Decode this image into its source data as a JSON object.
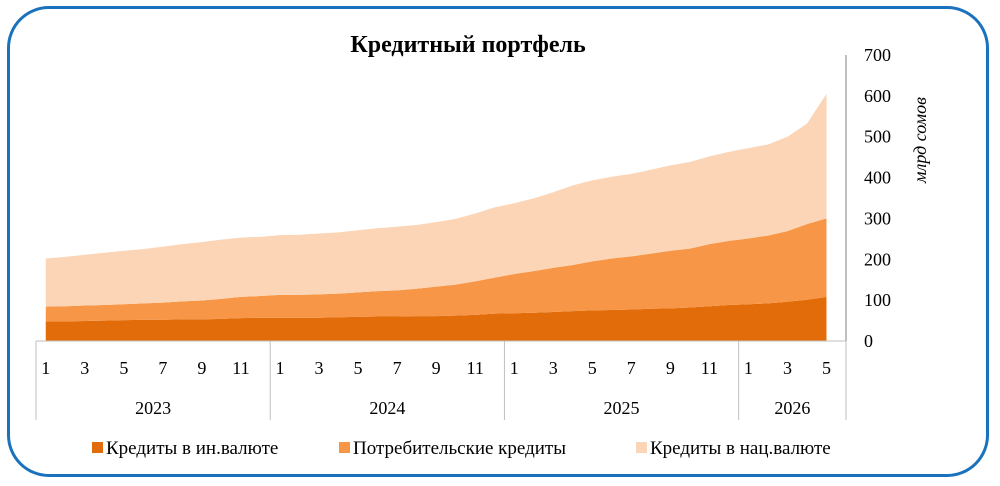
{
  "chart_data": {
    "type": "area",
    "stacked": true,
    "title": "Кредитный  портфель",
    "ylabel": "млрд сомов",
    "ylim": [
      0,
      700
    ],
    "yticks": [
      "0",
      "100",
      "200",
      "300",
      "400",
      "500",
      "600",
      "700"
    ],
    "y_axis_position": "right",
    "grid": false,
    "legend_position": "bottom",
    "years": [
      {
        "label": "2023",
        "months": 12
      },
      {
        "label": "2024",
        "months": 12
      },
      {
        "label": "2025",
        "months": 12
      },
      {
        "label": "2026",
        "months": 5
      }
    ],
    "xticks": [
      "1",
      "3",
      "5",
      "7",
      "9",
      "11",
      "1",
      "3",
      "5",
      "7",
      "9",
      "11",
      "1",
      "3",
      "5",
      "7",
      "9",
      "11",
      "1",
      "3",
      "5"
    ],
    "x": [
      "2023-01",
      "2023-02",
      "2023-03",
      "2023-04",
      "2023-05",
      "2023-06",
      "2023-07",
      "2023-08",
      "2023-09",
      "2023-10",
      "2023-11",
      "2023-12",
      "2024-01",
      "2024-02",
      "2024-03",
      "2024-04",
      "2024-05",
      "2024-06",
      "2024-07",
      "2024-08",
      "2024-09",
      "2024-10",
      "2024-11",
      "2024-12",
      "2025-01",
      "2025-02",
      "2025-03",
      "2025-04",
      "2025-05",
      "2025-06",
      "2025-07",
      "2025-08",
      "2025-09",
      "2025-10",
      "2025-11",
      "2025-12",
      "2026-01",
      "2026-02",
      "2026-03",
      "2026-04",
      "2026-05"
    ],
    "series": [
      {
        "name": "Кредиты в ин.валюте",
        "color": "#e36c0a",
        "values": [
          48,
          48,
          49,
          50,
          51,
          52,
          52,
          53,
          53,
          54,
          56,
          57,
          57,
          57,
          57,
          58,
          59,
          60,
          60,
          61,
          61,
          62,
          64,
          67,
          68,
          69,
          71,
          73,
          75,
          76,
          77,
          79,
          80,
          82,
          85,
          88,
          90,
          92,
          96,
          101,
          108
        ]
      },
      {
        "name": "Потребительские кредиты",
        "color": "#f79646",
        "values": [
          36,
          37,
          38,
          38,
          39,
          40,
          42,
          44,
          46,
          49,
          52,
          53,
          56,
          56,
          57,
          58,
          60,
          62,
          64,
          67,
          72,
          76,
          82,
          88,
          96,
          102,
          108,
          113,
          120,
          126,
          130,
          135,
          141,
          144,
          152,
          157,
          161,
          166,
          173,
          185,
          192
        ]
      },
      {
        "name": "Кредиты в нац.валюте",
        "color": "#fbd5b5",
        "values": [
          118,
          121,
          124,
          128,
          131,
          133,
          137,
          140,
          143,
          145,
          145,
          145,
          146,
          147,
          149,
          150,
          152,
          154,
          156,
          156,
          158,
          161,
          166,
          172,
          173,
          178,
          185,
          195,
          198,
          200,
          202,
          205,
          209,
          212,
          215,
          218,
          221,
          223,
          231,
          246,
          305
        ]
      }
    ]
  }
}
